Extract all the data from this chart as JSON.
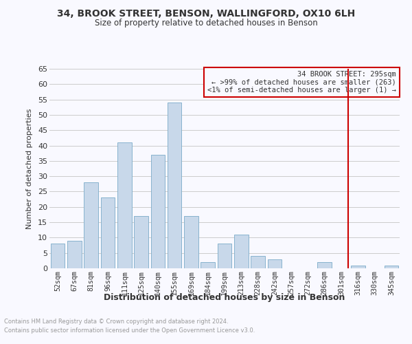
{
  "title": "34, BROOK STREET, BENSON, WALLINGFORD, OX10 6LH",
  "subtitle": "Size of property relative to detached houses in Benson",
  "xlabel": "Distribution of detached houses by size in Benson",
  "ylabel": "Number of detached properties",
  "bar_labels": [
    "52sqm",
    "67sqm",
    "81sqm",
    "96sqm",
    "111sqm",
    "125sqm",
    "140sqm",
    "155sqm",
    "169sqm",
    "184sqm",
    "199sqm",
    "213sqm",
    "228sqm",
    "242sqm",
    "257sqm",
    "272sqm",
    "286sqm",
    "301sqm",
    "316sqm",
    "330sqm",
    "345sqm"
  ],
  "bar_values": [
    8,
    9,
    28,
    23,
    41,
    17,
    37,
    54,
    17,
    2,
    8,
    11,
    4,
    3,
    0,
    0,
    2,
    0,
    1,
    0,
    1
  ],
  "bar_color": "#c8d8ea",
  "bar_edge_color": "#7aaac8",
  "grid_color": "#cccccc",
  "vline_index": 17,
  "vline_color": "#cc0000",
  "legend_title": "34 BROOK STREET: 295sqm",
  "legend_line1": "← >99% of detached houses are smaller (263)",
  "legend_line2": "<1% of semi-detached houses are larger (1) →",
  "legend_box_color": "#cc0000",
  "ylim": [
    0,
    65
  ],
  "yticks": [
    0,
    5,
    10,
    15,
    20,
    25,
    30,
    35,
    40,
    45,
    50,
    55,
    60,
    65
  ],
  "footnote1": "Contains HM Land Registry data © Crown copyright and database right 2024.",
  "footnote2": "Contains public sector information licensed under the Open Government Licence v3.0.",
  "bg_color": "#f9f9ff",
  "title_color": "#333333",
  "footnote_color": "#999999"
}
